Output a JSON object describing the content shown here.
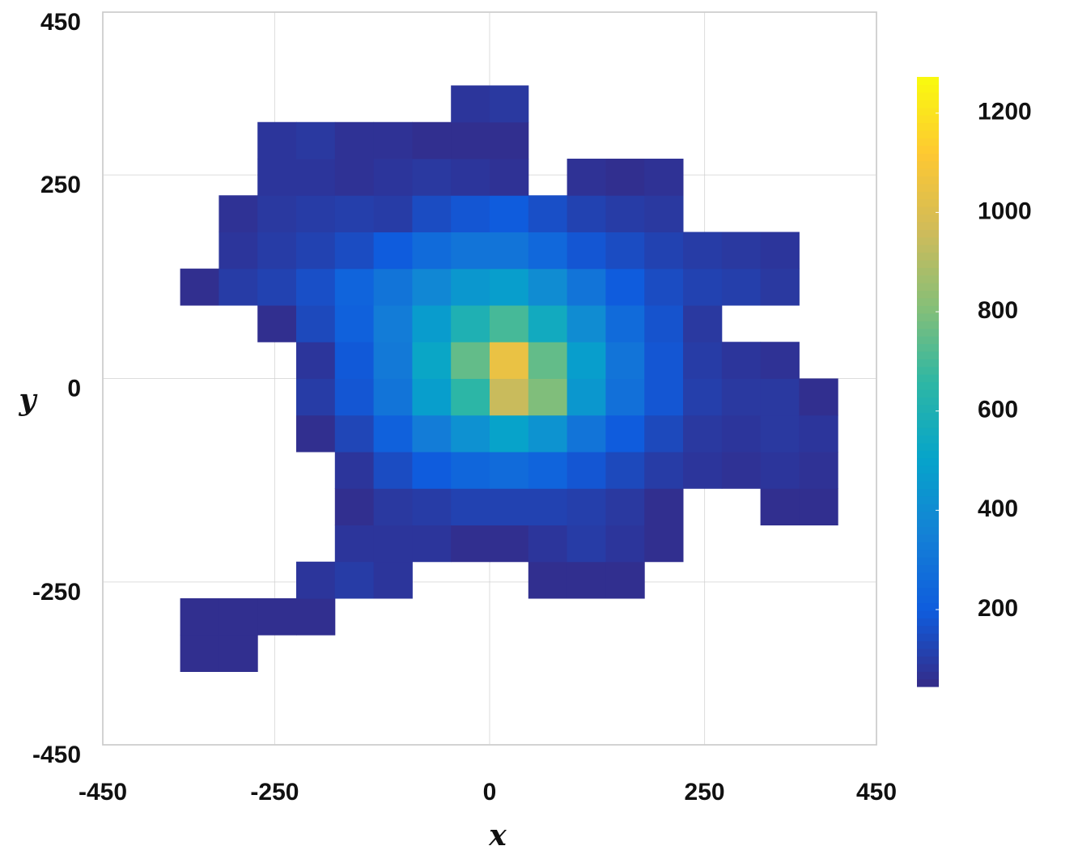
{
  "chart_data": {
    "type": "heatmap",
    "xlabel": "x",
    "ylabel": "y",
    "xlim": [
      -450,
      450
    ],
    "ylim": [
      -450,
      450
    ],
    "xticks": [
      -450,
      -250,
      0,
      250,
      450
    ],
    "yticks": [
      -450,
      -250,
      0,
      250,
      450
    ],
    "grid": true,
    "xbins": [
      -450,
      -405,
      -360,
      -315,
      -270,
      -225,
      -180,
      -135,
      -90,
      -45,
      0,
      45,
      90,
      135,
      180,
      225,
      270,
      315,
      360,
      405,
      450
    ],
    "ybins": [
      -450,
      -405,
      -360,
      -315,
      -270,
      -225,
      -180,
      -135,
      -90,
      -45,
      0,
      45,
      90,
      135,
      180,
      225,
      270,
      315,
      360,
      405,
      450
    ],
    "z": [
      [
        null,
        null,
        null,
        null,
        null,
        null,
        null,
        null,
        null,
        null,
        null,
        null,
        null,
        null,
        null,
        null,
        null,
        null,
        null,
        null
      ],
      [
        null,
        null,
        null,
        null,
        null,
        null,
        null,
        null,
        null,
        null,
        null,
        null,
        null,
        null,
        null,
        null,
        null,
        null,
        null,
        null
      ],
      [
        null,
        null,
        60,
        60,
        null,
        null,
        null,
        null,
        null,
        null,
        null,
        null,
        null,
        null,
        null,
        null,
        null,
        null,
        null,
        null
      ],
      [
        null,
        null,
        60,
        60,
        60,
        60,
        null,
        null,
        null,
        null,
        null,
        null,
        null,
        null,
        null,
        null,
        null,
        null,
        null,
        null
      ],
      [
        null,
        null,
        null,
        null,
        null,
        80,
        100,
        80,
        null,
        null,
        null,
        60,
        60,
        60,
        null,
        null,
        null,
        null,
        null,
        null
      ],
      [
        null,
        null,
        null,
        null,
        null,
        null,
        80,
        80,
        80,
        60,
        60,
        80,
        100,
        80,
        60,
        null,
        null,
        null,
        null,
        null
      ],
      [
        null,
        null,
        null,
        null,
        null,
        null,
        60,
        90,
        100,
        120,
        120,
        120,
        110,
        90,
        60,
        null,
        null,
        60,
        60,
        null
      ],
      [
        null,
        null,
        null,
        null,
        null,
        null,
        80,
        150,
        200,
        240,
        260,
        230,
        180,
        140,
        100,
        80,
        70,
        80,
        70,
        null
      ],
      [
        null,
        null,
        null,
        null,
        null,
        60,
        130,
        220,
        330,
        420,
        500,
        430,
        300,
        200,
        140,
        90,
        80,
        90,
        80,
        null
      ],
      [
        null,
        null,
        null,
        null,
        null,
        100,
        180,
        300,
        480,
        650,
        950,
        800,
        450,
        280,
        180,
        110,
        90,
        90,
        60,
        null
      ],
      [
        null,
        null,
        null,
        null,
        null,
        80,
        190,
        320,
        520,
        750,
        1050,
        750,
        480,
        300,
        180,
        100,
        80,
        70,
        null,
        null
      ],
      [
        null,
        null,
        null,
        null,
        60,
        140,
        220,
        330,
        470,
        600,
        700,
        550,
        400,
        260,
        170,
        90,
        null,
        null,
        null,
        null
      ],
      [
        null,
        null,
        60,
        100,
        120,
        160,
        230,
        300,
        380,
        450,
        480,
        400,
        300,
        200,
        150,
        120,
        110,
        90,
        null,
        null
      ],
      [
        null,
        null,
        null,
        80,
        100,
        120,
        150,
        200,
        260,
        300,
        300,
        250,
        180,
        150,
        120,
        100,
        90,
        80,
        null,
        null
      ],
      [
        null,
        null,
        null,
        70,
        90,
        100,
        110,
        100,
        150,
        180,
        200,
        160,
        120,
        100,
        90,
        null,
        null,
        null,
        null,
        null
      ],
      [
        null,
        null,
        null,
        null,
        80,
        80,
        70,
        80,
        90,
        80,
        70,
        null,
        70,
        60,
        70,
        null,
        null,
        null,
        null,
        null
      ],
      [
        null,
        null,
        null,
        null,
        80,
        90,
        70,
        70,
        60,
        60,
        60,
        null,
        null,
        null,
        null,
        null,
        null,
        null,
        null,
        null
      ],
      [
        null,
        null,
        null,
        null,
        null,
        null,
        null,
        null,
        null,
        80,
        90,
        null,
        null,
        null,
        null,
        null,
        null,
        null,
        null,
        null
      ],
      [
        null,
        null,
        null,
        null,
        null,
        null,
        null,
        null,
        null,
        null,
        null,
        null,
        null,
        null,
        null,
        null,
        null,
        null,
        null,
        null
      ],
      [
        null,
        null,
        null,
        null,
        null,
        null,
        null,
        null,
        null,
        null,
        null,
        null,
        null,
        null,
        null,
        null,
        null,
        null,
        null,
        null
      ]
    ],
    "clim": [
      45,
      1273
    ],
    "cticks": [
      200,
      400,
      600,
      800,
      1000,
      1200
    ],
    "colormap": [
      "#352a87",
      "#0f5cdd",
      "#1481d6",
      "#06a4ca",
      "#2eb7a4",
      "#87bf77",
      "#d1bb59",
      "#fec832",
      "#f9fb0e"
    ]
  }
}
